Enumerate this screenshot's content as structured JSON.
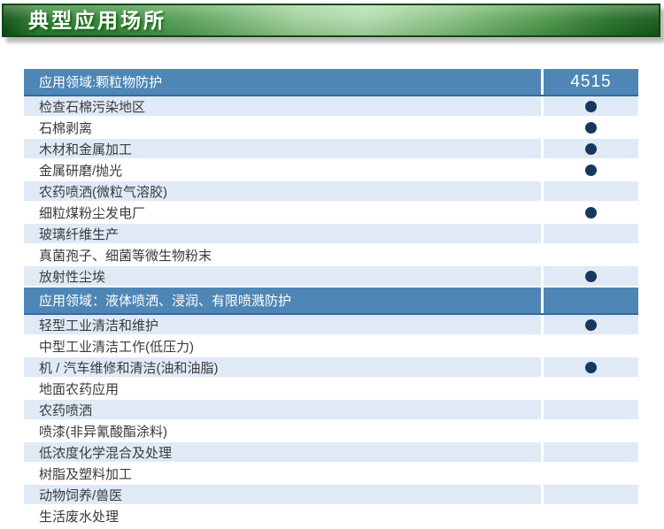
{
  "banner": {
    "title": "典型应用场所"
  },
  "table": {
    "product_code": "4515",
    "sections": [
      {
        "header": "应用领域:颗粒物防护",
        "rows": [
          {
            "label": "检查石棉污染地区",
            "dot": true
          },
          {
            "label": "石棉剥离",
            "dot": true
          },
          {
            "label": "木材和金属加工",
            "dot": true
          },
          {
            "label": "金属研磨/抛光",
            "dot": true
          },
          {
            "label": "农药喷洒(微粒气溶胶)",
            "dot": false
          },
          {
            "label": "细粒煤粉尘发电厂",
            "dot": true
          },
          {
            "label": "玻璃纤维生产",
            "dot": false
          },
          {
            "label": "真菌孢子、细菌等微生物粉末",
            "dot": false
          },
          {
            "label": "放射性尘埃",
            "dot": true
          }
        ]
      },
      {
        "header": "应用领域：液体喷洒、浸润、有限喷溅防护",
        "rows": [
          {
            "label": "轻型工业清洁和维护",
            "dot": true
          },
          {
            "label": "中型工业清洁工作(低压力)",
            "dot": false
          },
          {
            "label": "机 / 汽车维修和清洁(油和油脂)",
            "dot": true
          },
          {
            "label": "地面农药应用",
            "dot": false
          },
          {
            "label": "农药喷洒",
            "dot": false
          },
          {
            "label": "喷漆(非异氰酸酯涂料)",
            "dot": false
          },
          {
            "label": "低浓度化学混合及处理",
            "dot": false
          },
          {
            "label": "树脂及塑料加工",
            "dot": false
          },
          {
            "label": "动物饲养/兽医",
            "dot": false
          },
          {
            "label": "生活废水处理",
            "dot": false
          }
        ]
      }
    ]
  },
  "colors": {
    "header_blue": "#4e86b5",
    "header_blue_border": "#316a9e",
    "row_light_blue": "#dfeaf6",
    "dot_navy": "#17375e",
    "banner_green_dark": "#155a18",
    "banner_green_light": "#b0dcab",
    "banner_border_green": "#0a4a10"
  }
}
